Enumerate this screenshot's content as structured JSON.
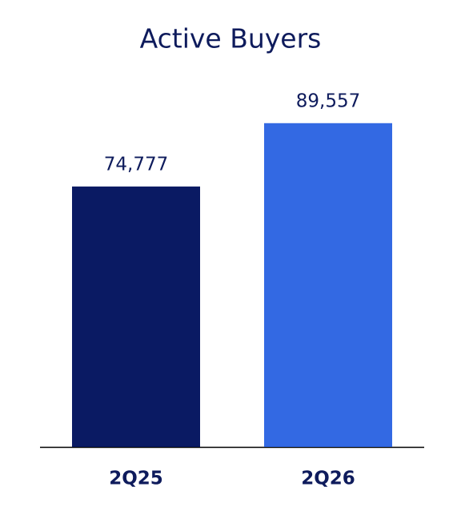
{
  "chart_data": {
    "type": "bar",
    "title": "Active Buyers",
    "categories": [
      "2Q25",
      "2Q26"
    ],
    "values": [
      74777,
      89557
    ],
    "value_labels": [
      "74,777",
      "89,557"
    ],
    "colors": [
      "#0a1a63",
      "#3369e3"
    ],
    "ylim": [
      14000,
      94000
    ]
  }
}
